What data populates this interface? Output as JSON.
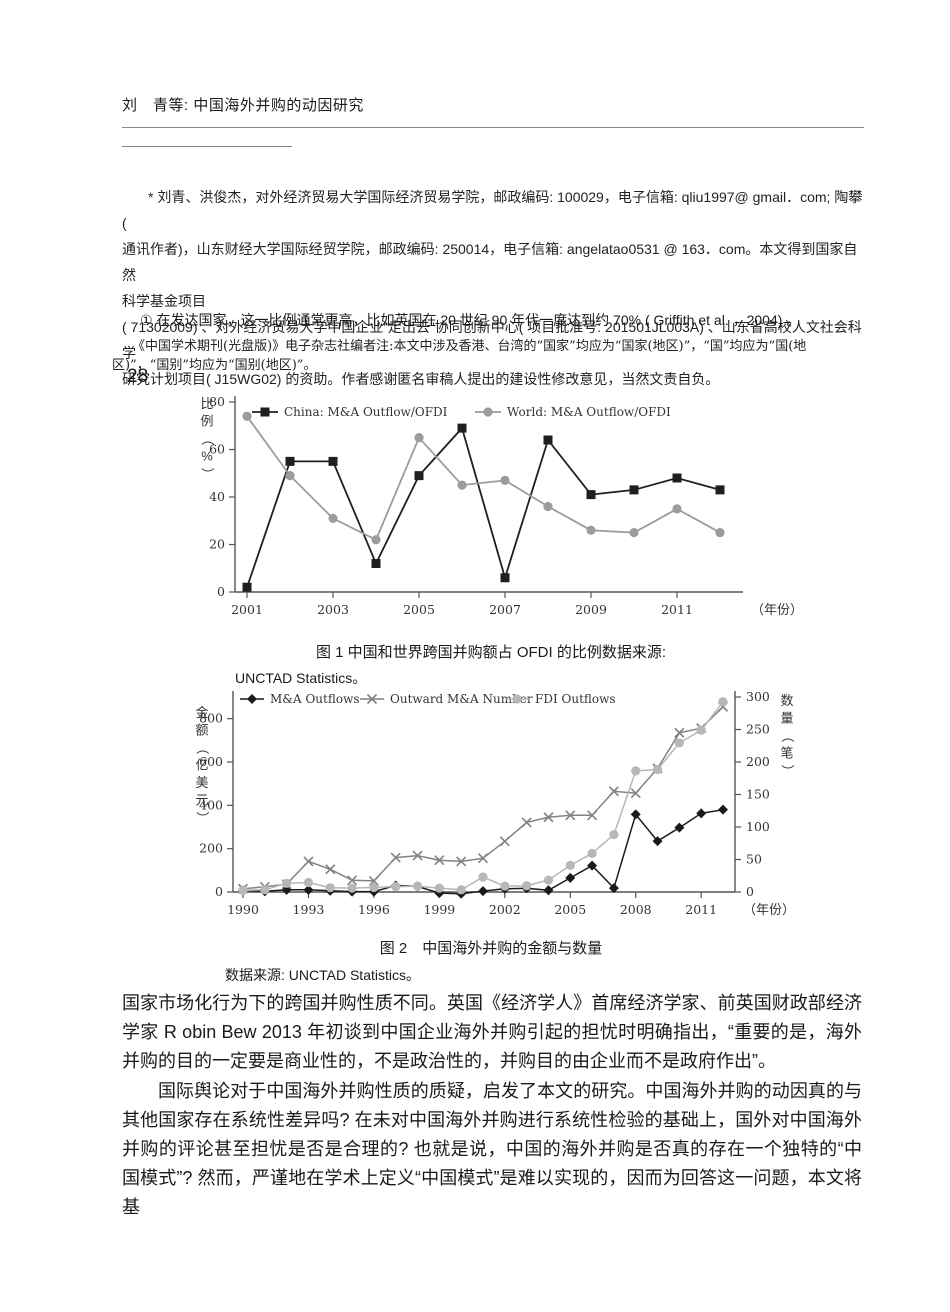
{
  "page": {
    "header": "刘　青等: 中国海外并购的动因研究",
    "page_number": "28"
  },
  "footnote": {
    "lines": [
      "* 刘青、洪俊杰，对外经济贸易大学国际经济贸易学院，邮政编码: 100029，电子信箱: qliu1997@ gmail．com; 陶攀(",
      "通讯作者)，山东财经大学国际经贸学院，邮政编码: 250014，电子信箱: angelatao0531 @ 163．com。本文得到国家自然",
      "科学基金项目",
      "( 71302009) 、对外经济贸易大学中国企业“走出去”协同创新中心( 项目批准号: 201501JL003A) 、山东省高校人文社会科学",
      "研究计划项目( J15WG02) 的资助。作者感谢匿名审稿人提出的建设性修改意见，当然文责自负。"
    ]
  },
  "notes": {
    "circled_note": "① 在发达国家，这一比例通常更高，比如英国在 20 世纪 90 年代一度达到约 70% ( Griffith et al. ，2004) 。",
    "editor_note": "《中国学术期刊(光盘版)》电子杂志社编者注:本文中涉及香港、台湾的“国家”均应为“国家(地区)”，“国”均应为“国(地区)”，“国别”均应为“国别(地区)”。"
  },
  "figure1": {
    "caption": "图 1 中国和世界跨国并购额占 OFDI 的比例数据来源:",
    "source": "UNCTAD Statistics。"
  },
  "figure2": {
    "caption": "图 2　中国海外并购的金额与数量",
    "source": "数据来源: UNCTAD Statistics。"
  },
  "body": {
    "paragraph1": "国家市场化行为下的跨国并购性质不同。英国《经济学人》首席经济学家、前英国财政部经济学家 R obin Bew 2013 年初谈到中国企业海外并购引起的担忧时明确指出，“重要的是，海外并购的目的一定要是商业性的，不是政治性的，并购目的由企业而不是政府作出”。",
    "paragraph2": "国际舆论对于中国海外并购性质的质疑，启发了本文的研究。中国海外并购的动因真的与其他国家存在系统性差异吗? 在未对中国海外并购进行系统性检验的基础上，国外对中国海外并购的评论甚至担忧是否是合理的? 也就是说，中国的海外并购是否真的存在一个独特的“中国模式”? 然而，严谨地在学术上定义“中国模式”是难以实现的，因而为回答这一问题，本文将基"
  },
  "chart_data": [
    {
      "type": "line",
      "title": "",
      "x": [
        2001,
        2002,
        2003,
        2004,
        2005,
        2006,
        2007,
        2008,
        2009,
        2010,
        2011,
        2012
      ],
      "series": [
        {
          "name": "China: M&A Outflow/OFDI",
          "axis": "left",
          "marker": "square",
          "color": "#1f1f1f",
          "values": [
            2,
            55,
            55,
            12,
            49,
            69,
            6,
            64,
            41,
            43,
            48,
            43
          ]
        },
        {
          "name": "World: M&A Outflow/OFDI",
          "axis": "left",
          "marker": "circle",
          "color": "#9c9c9c",
          "values": [
            74,
            49,
            31,
            22,
            65,
            45,
            47,
            36,
            26,
            25,
            35,
            25
          ]
        }
      ],
      "ylabel": "比例（%）",
      "xlabel": "（年份）",
      "ylim": [
        0,
        80
      ],
      "yticks_left": [
        0,
        20,
        40,
        60,
        80
      ],
      "xticks": [
        2001,
        2003,
        2005,
        2007,
        2009,
        2011
      ],
      "legend_position": "top",
      "grid": false
    },
    {
      "type": "line",
      "title": "",
      "x": [
        1990,
        1991,
        1992,
        1993,
        1994,
        1995,
        1996,
        1997,
        1998,
        1999,
        2000,
        2001,
        2002,
        2003,
        2004,
        2005,
        2006,
        2007,
        2008,
        2009,
        2010,
        2011,
        2012
      ],
      "series": [
        {
          "name": "M&A Outflows",
          "axis": "left",
          "marker": "diamond",
          "color": "#1a1a1a",
          "values": [
            8,
            3,
            10,
            10,
            6,
            2,
            2,
            30,
            26,
            -5,
            -8,
            4,
            15,
            17,
            8,
            65,
            122,
            18,
            358,
            235,
            297,
            363,
            380
          ]
        },
        {
          "name": "Outward M&A Number",
          "axis": "right",
          "marker": "x",
          "color": "#828282",
          "values": [
            5,
            8,
            12,
            47,
            35,
            18,
            17,
            53,
            56,
            49,
            47,
            52,
            78,
            107,
            115,
            118,
            118,
            155,
            152,
            190,
            245,
            252,
            285
          ]
        },
        {
          "name": "FDI Outflows",
          "axis": "left",
          "marker": "circle",
          "color": "#b7b7b7",
          "values": [
            8,
            10,
            40,
            44,
            20,
            18,
            21,
            25,
            27,
            18,
            10,
            69,
            27,
            29,
            55,
            123,
            178,
            265,
            559,
            565,
            688,
            747,
            878
          ]
        }
      ],
      "ylabel_left": "金额（亿美元）",
      "ylabel_right": "数量（笔）",
      "xlabel": "（年份）",
      "ylim_left": [
        0,
        900
      ],
      "ylim_right": [
        0,
        300
      ],
      "yticks_left": [
        0,
        200,
        400,
        600,
        800
      ],
      "yticks_right": [
        0,
        50,
        100,
        150,
        200,
        250,
        300
      ],
      "xticks": [
        1990,
        1993,
        1996,
        1999,
        2002,
        2005,
        2008,
        2011
      ],
      "legend_position": "top",
      "grid": false
    }
  ]
}
